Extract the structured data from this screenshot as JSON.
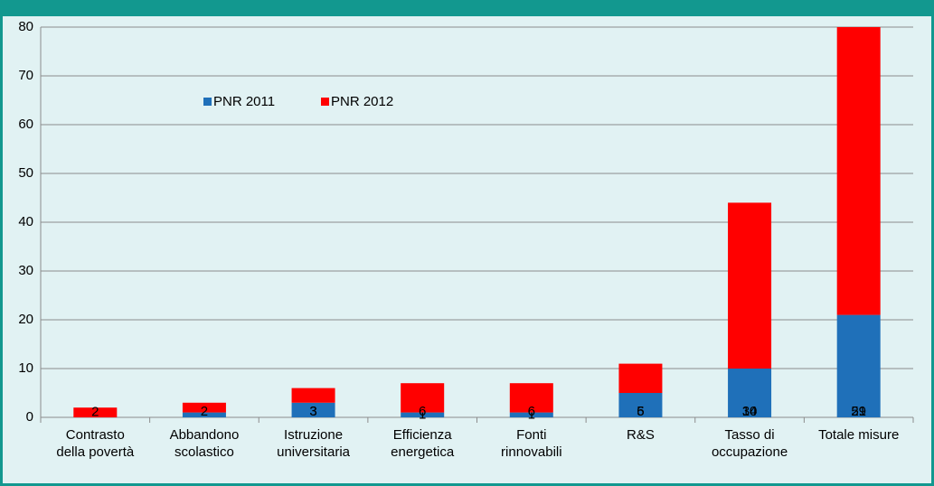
{
  "chart_data": {
    "type": "bar",
    "stacked": true,
    "categories": [
      "Contrasto\ndella povertà",
      "Abbandono\nscolastico",
      "Istruzione\nuniversitaria",
      "Efficienza\nenergetica",
      "Fonti\nrinnovabili",
      "R&S",
      "Tasso di\noccupazione",
      "Totale  misure"
    ],
    "series": [
      {
        "name": "PNR 2011",
        "color": "#1f70b9",
        "values": [
          0,
          1,
          3,
          1,
          1,
          5,
          10,
          21
        ],
        "value_labels": [
          null,
          null,
          "3",
          "1",
          "1",
          "5",
          "10",
          "21"
        ]
      },
      {
        "name": "PNR 2012",
        "color": "#ff0000",
        "values": [
          2,
          2,
          3,
          6,
          6,
          6,
          34,
          59
        ],
        "value_labels": [
          "2",
          "2",
          "3",
          "6",
          "6",
          "6",
          "34",
          "59"
        ]
      }
    ],
    "ylim": [
      0,
      80
    ],
    "yticks": [
      0,
      10,
      20,
      30,
      40,
      50,
      60,
      70,
      80
    ],
    "grid": true,
    "legend": "top-left"
  }
}
